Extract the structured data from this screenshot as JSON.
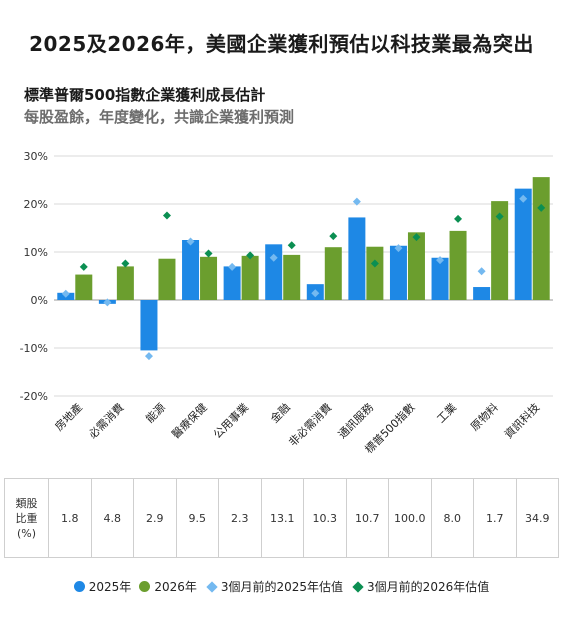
{
  "header": {
    "main_title": "2025及2026年，美國企業獲利預估以科技業最為突出",
    "chart_title": "標準普爾500指數企業獲利成長估計",
    "chart_subtitle": "每股盈餘，年度變化，共識企業獲利預測"
  },
  "chart_data": {
    "type": "bar",
    "ylim": [
      -20,
      30
    ],
    "yticks": [
      -20,
      -10,
      0,
      10,
      20,
      30
    ],
    "ytick_labels": [
      "-20%",
      "-10%",
      "0%",
      "10%",
      "20%",
      "30%"
    ],
    "grid": true,
    "legend_position": "bottom",
    "categories": [
      "房地產",
      "必需消費",
      "能源",
      "醫療保健",
      "公用事業",
      "金融",
      "非必需消費",
      "通訊服務",
      "標普500指數",
      "工業",
      "原物料",
      "資訊科技"
    ],
    "series": [
      {
        "name": "2025年",
        "kind": "bar",
        "color": "#1e88e5",
        "values": [
          1.5,
          -0.8,
          -10.5,
          12.5,
          7.0,
          11.6,
          3.3,
          17.2,
          11.3,
          8.8,
          2.7,
          23.2
        ]
      },
      {
        "name": "2026年",
        "kind": "bar",
        "color": "#6b9e2e",
        "values": [
          5.3,
          7.0,
          8.6,
          9.0,
          9.2,
          9.4,
          11.0,
          11.1,
          14.1,
          14.4,
          20.6,
          25.6
        ]
      },
      {
        "name": "3個月前的2025年估值",
        "kind": "marker",
        "color": "#74b9f0",
        "values": [
          1.3,
          -0.5,
          -11.7,
          12.2,
          6.9,
          8.8,
          1.4,
          20.5,
          10.8,
          8.3,
          6.0,
          21.1
        ]
      },
      {
        "name": "3個月前的2026年估值",
        "kind": "marker",
        "color": "#0b8f52",
        "values": [
          6.9,
          7.6,
          17.6,
          9.7,
          9.3,
          11.4,
          13.3,
          7.6,
          13.1,
          16.9,
          17.4,
          19.2
        ]
      }
    ]
  },
  "weights": {
    "header_lines": [
      "類股",
      "比重",
      "(%)"
    ],
    "values": [
      "1.8",
      "4.8",
      "2.9",
      "9.5",
      "2.3",
      "13.1",
      "10.3",
      "10.7",
      "100.0",
      "8.0",
      "1.7",
      "34.9"
    ]
  },
  "legend": {
    "items": [
      {
        "label": "2025年",
        "color": "#1e88e5",
        "shape": "circle"
      },
      {
        "label": "2026年",
        "color": "#6b9e2e",
        "shape": "circle"
      },
      {
        "label": "3個月前的2025年估值",
        "color": "#74b9f0",
        "shape": "diamond"
      },
      {
        "label": "3個月前的2026年估值",
        "color": "#0b8f52",
        "shape": "diamond"
      }
    ]
  }
}
